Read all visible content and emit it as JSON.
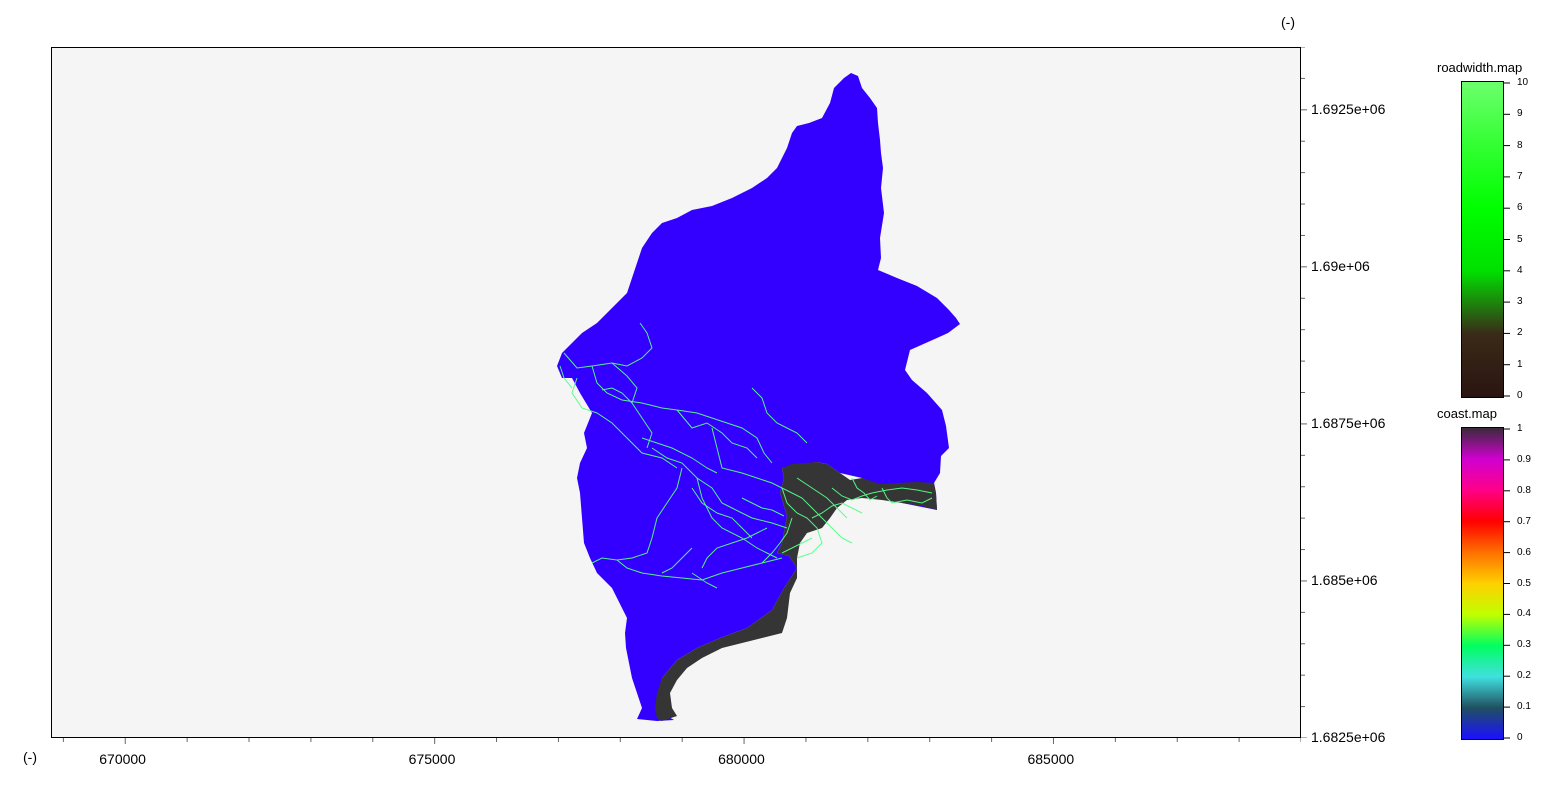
{
  "axes": {
    "y_unit": "(-)",
    "x_unit": "(-)",
    "x_ticks": [
      "670000",
      "675000",
      "680000",
      "685000"
    ],
    "y_ticks": [
      "1.6925e+06",
      "1.69e+06",
      "1.6875e+06",
      "1.685e+06",
      "1.6825e+06"
    ]
  },
  "map": {
    "x_range": [
      668800,
      689000
    ],
    "y_range": [
      1682500,
      1693500
    ],
    "colors": {
      "background": "#f4f5f4",
      "catchment": "#3300ff",
      "coast": "#353535",
      "roads": "#55ff88"
    }
  },
  "legends": [
    {
      "title": "roadwidth.map",
      "labels": [
        "10",
        "9",
        "8",
        "7",
        "6",
        "5",
        "4",
        "3",
        "2",
        "1",
        "0"
      ],
      "gradient": [
        "#6cff6c",
        "#33ff33",
        "#00ff00",
        "#00e000",
        "#3a2a18",
        "#2a1410"
      ]
    },
    {
      "title": "coast.map",
      "labels": [
        "1",
        "0.9",
        "0.8",
        "0.7",
        "0.6",
        "0.5",
        "0.4",
        "0.3",
        "0.2",
        "0.1",
        "0"
      ],
      "gradient": [
        "#3a2a3a",
        "#d000d0",
        "#ff0088",
        "#ff0000",
        "#ff7000",
        "#ffd000",
        "#c0ff00",
        "#00ff60",
        "#40e0e0",
        "#205060",
        "#1a10ff"
      ]
    }
  ]
}
